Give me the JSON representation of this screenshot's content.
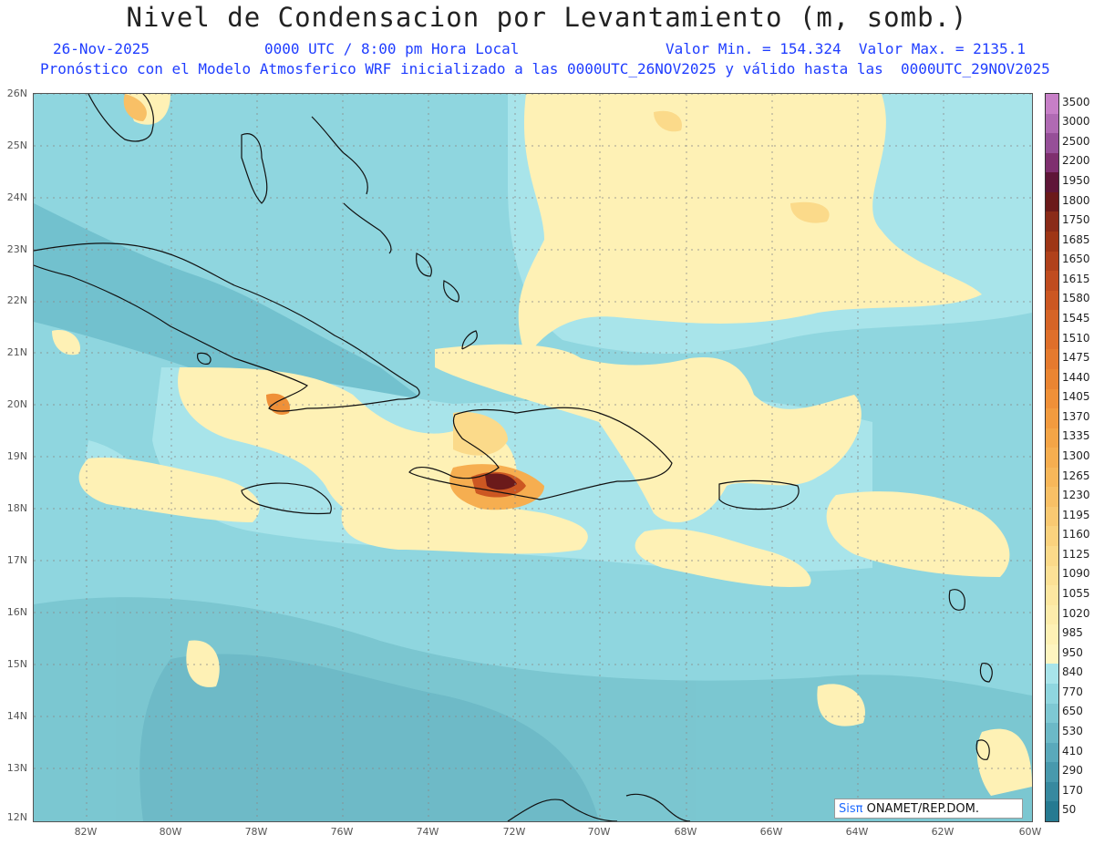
{
  "title": "Nivel de Condensacion por Levantamiento (m, somb.)",
  "header": {
    "date": "26-Nov-2025",
    "time": "0000 UTC / 8:00 pm Hora Local",
    "minmax": "Valor Min. = 154.324  Valor Max. = 2135.1",
    "model_line": "Pronóstico con el Modelo Atmosferico WRF inicializado a las 0000UTC_26NOV2025 y válido hasta las  0000UTC_29NOV2025"
  },
  "map": {
    "lat_labels": [
      "26N",
      "25N",
      "24N",
      "23N",
      "22N",
      "21N",
      "20N",
      "19N",
      "18N",
      "17N",
      "16N",
      "15N",
      "14N",
      "13N",
      "12N"
    ],
    "lon_labels": [
      "82W",
      "80W",
      "78W",
      "76W",
      "74W",
      "72W",
      "70W",
      "68W",
      "66W",
      "64W",
      "62W",
      "60W"
    ],
    "background_color": "#8fd6df"
  },
  "colorbar": {
    "labels": [
      "3500",
      "3000",
      "2500",
      "2200",
      "1950",
      "1800",
      "1750",
      "1685",
      "1650",
      "1615",
      "1580",
      "1545",
      "1510",
      "1475",
      "1440",
      "1405",
      "1370",
      "1335",
      "1300",
      "1265",
      "1230",
      "1195",
      "1160",
      "1125",
      "1090",
      "1055",
      "1020",
      "985",
      "950",
      "840",
      "770",
      "650",
      "530",
      "410",
      "290",
      "170",
      "50"
    ],
    "colors": [
      "#c77fc7",
      "#b06ab3",
      "#964f98",
      "#7f2f6f",
      "#5f1638",
      "#6b1a1a",
      "#8a2b18",
      "#9e3616",
      "#b0411b",
      "#c04c1f",
      "#cc5722",
      "#d66426",
      "#df6f2a",
      "#e57a2e",
      "#ea8532",
      "#ef9038",
      "#f29b3f",
      "#f4a547",
      "#f6ae50",
      "#f7b75a",
      "#f8c066",
      "#f9c972",
      "#fad27e",
      "#fbda8a",
      "#fce196",
      "#fde7a1",
      "#fdecab",
      "#fef1b5",
      "#fef5c0",
      "#a8e4ea",
      "#8fd6df",
      "#7ec8d3",
      "#6cb9c7",
      "#5aa9bb",
      "#4899ad",
      "#37899f",
      "#267a91"
    ]
  },
  "credit": {
    "brand": "Sisπ",
    "text": " ONAMET/REP.DOM."
  }
}
